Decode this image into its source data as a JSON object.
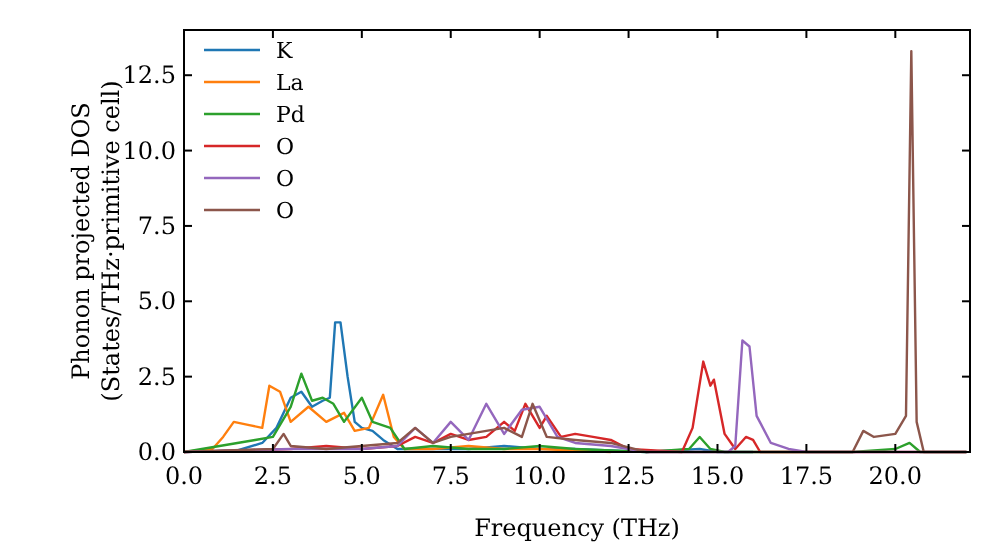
{
  "chart_data": {
    "type": "line",
    "xlabel": "Frequency (THz)",
    "ylabel": "Phonon projected DOS\n(States/THz·primitive cell)",
    "xlim": [
      0,
      22.1
    ],
    "ylim": [
      0,
      14
    ],
    "xticks": [
      {
        "value": 0,
        "label": "0.0"
      },
      {
        "value": 2.5,
        "label": "2.5"
      },
      {
        "value": 5,
        "label": "5.0"
      },
      {
        "value": 7.5,
        "label": "7.5"
      },
      {
        "value": 10,
        "label": "10.0"
      },
      {
        "value": 12.5,
        "label": "12.5"
      },
      {
        "value": 15,
        "label": "15.0"
      },
      {
        "value": 17.5,
        "label": "17.5"
      },
      {
        "value": 20,
        "label": "20.0"
      }
    ],
    "yticks": [
      {
        "value": 0,
        "label": "0.0"
      },
      {
        "value": 2.5,
        "label": "2.5"
      },
      {
        "value": 5,
        "label": "5.0"
      },
      {
        "value": 7.5,
        "label": "7.5"
      },
      {
        "value": 10,
        "label": "10.0"
      },
      {
        "value": 12.5,
        "label": "12.5"
      }
    ],
    "grid": false,
    "legend": "top left",
    "line_style": "solid",
    "series": [
      {
        "name": "K",
        "color": "#1f77b4",
        "x": [
          0,
          1.5,
          2.2,
          2.6,
          3,
          3.3,
          3.6,
          3.9,
          4.1,
          4.25,
          4.4,
          4.6,
          4.8,
          5,
          5.3,
          5.6,
          6,
          7,
          8,
          9,
          10,
          11,
          12,
          13,
          14.5,
          15,
          16
        ],
        "values": [
          0,
          0.05,
          0.3,
          0.8,
          1.8,
          2.0,
          1.5,
          1.7,
          1.8,
          4.3,
          4.3,
          2.5,
          1.0,
          0.8,
          0.7,
          0.4,
          0.1,
          0.1,
          0.1,
          0.2,
          0.1,
          0.1,
          0.05,
          0,
          0.1,
          0,
          0
        ]
      },
      {
        "name": "La",
        "color": "#ff7f0e",
        "x": [
          0,
          0.8,
          1.1,
          1.4,
          1.8,
          2.2,
          2.4,
          2.7,
          3,
          3.5,
          4,
          4.5,
          4.8,
          5.2,
          5.6,
          5.9,
          6.2,
          7,
          8,
          9,
          10,
          11,
          12
        ],
        "values": [
          0,
          0.1,
          0.5,
          1.0,
          0.9,
          0.8,
          2.2,
          2.0,
          1.0,
          1.5,
          1.0,
          1.3,
          0.7,
          0.8,
          1.9,
          0.5,
          0.1,
          0.1,
          0.2,
          0.1,
          0.1,
          0.05,
          0
        ]
      },
      {
        "name": "Pd",
        "color": "#2ca02c",
        "x": [
          0,
          1,
          2,
          2.5,
          3,
          3.3,
          3.6,
          3.9,
          4.2,
          4.5,
          5,
          5.3,
          5.8,
          6.2,
          7,
          8,
          9,
          10,
          11,
          12,
          13,
          14.2,
          14.5,
          14.8,
          15.2,
          16,
          18.8,
          20,
          20.4,
          20.7,
          22
        ],
        "values": [
          0,
          0.2,
          0.4,
          0.5,
          1.5,
          2.6,
          1.7,
          1.8,
          1.6,
          1.0,
          1.8,
          1.0,
          0.8,
          0.1,
          0.2,
          0.1,
          0.1,
          0.2,
          0.1,
          0.05,
          0,
          0.1,
          0.5,
          0.1,
          0,
          0,
          0,
          0.1,
          0.3,
          0,
          0
        ]
      },
      {
        "name": "O",
        "color": "#d62728",
        "x": [
          0,
          3,
          4,
          5,
          6,
          6.5,
          7,
          7.5,
          8,
          8.5,
          9,
          9.3,
          9.6,
          10,
          10.2,
          10.6,
          11,
          11.5,
          12,
          12.5,
          14,
          14.3,
          14.6,
          14.8,
          14.9,
          15.2,
          15.5,
          15.8,
          16,
          16.2,
          22
        ],
        "values": [
          0,
          0.1,
          0.2,
          0.1,
          0.2,
          0.5,
          0.3,
          0.6,
          0.4,
          0.5,
          1.0,
          0.7,
          1.6,
          0.8,
          1.2,
          0.5,
          0.6,
          0.5,
          0.4,
          0.1,
          0,
          0.8,
          3.0,
          2.2,
          2.4,
          0.6,
          0.1,
          0.5,
          0.4,
          0,
          0
        ]
      },
      {
        "name": "O",
        "color": "#9467bd",
        "x": [
          0,
          3,
          5,
          6,
          6.5,
          7,
          7.5,
          8,
          8.5,
          9,
          9.5,
          10,
          10.5,
          11,
          12,
          13,
          15.3,
          15.5,
          15.7,
          15.9,
          16.1,
          16.5,
          17,
          17.5,
          22
        ],
        "values": [
          0,
          0.1,
          0.1,
          0.2,
          0.8,
          0.3,
          1.0,
          0.4,
          1.6,
          0.6,
          1.4,
          1.5,
          0.5,
          0.3,
          0.2,
          0,
          0,
          0.2,
          3.7,
          3.5,
          1.2,
          0.3,
          0.1,
          0,
          0
        ]
      },
      {
        "name": "O",
        "color": "#8c564b",
        "x": [
          0,
          2.5,
          2.8,
          3,
          4,
          5,
          6,
          6.5,
          7,
          7.5,
          8,
          9,
          9.5,
          9.8,
          10.2,
          11,
          12,
          13,
          18.8,
          19.1,
          19.4,
          20,
          20.3,
          20.45,
          20.6,
          20.8,
          22
        ],
        "values": [
          0,
          0.1,
          0.6,
          0.2,
          0.1,
          0.2,
          0.3,
          0.8,
          0.3,
          0.5,
          0.6,
          0.8,
          0.5,
          1.6,
          0.5,
          0.4,
          0.3,
          0,
          0,
          0.7,
          0.5,
          0.6,
          1.2,
          13.3,
          1.0,
          0,
          0
        ]
      }
    ]
  }
}
